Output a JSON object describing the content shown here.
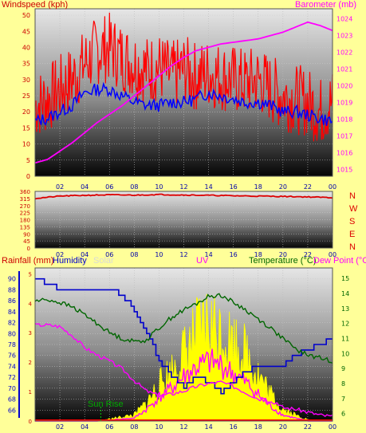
{
  "colors": {
    "background": "#ffff99",
    "wind_label": "#cc0000",
    "barometer": "#ff00ff",
    "wind_gust": "#ff0000",
    "wind_avg": "#0000ff",
    "direction": "#dd0000",
    "rain": "#ff0000",
    "humidity": "#0000cc",
    "solar": "#ffff00",
    "uv": "#ff00ff",
    "temperature": "#006600",
    "dewpoint": "#ff00ff"
  },
  "chart_data": [
    {
      "type": "line",
      "title": "",
      "ylabel": "Windspeed (kph)",
      "y2label": "Barometer (mb)",
      "x_ticks": [
        "02",
        "04",
        "06",
        "08",
        "10",
        "12",
        "14",
        "16",
        "18",
        "20",
        "22",
        "00"
      ],
      "ylim": [
        0,
        52
      ],
      "y_ticks": [
        0,
        5,
        10,
        15,
        20,
        25,
        30,
        35,
        40,
        45,
        50
      ],
      "y2lim": [
        1014.6,
        1024.6
      ],
      "y2_ticks": [
        1015,
        1016,
        1017,
        1018,
        1019,
        1020,
        1021,
        1022,
        1023,
        1024
      ],
      "series": [
        {
          "name": "Windspeed (kph)",
          "style": "gust",
          "x": [
            0,
            1,
            2,
            3,
            4,
            5,
            6,
            7,
            8,
            9,
            10,
            11,
            12,
            13,
            14,
            15,
            16,
            17,
            18,
            19,
            20,
            21,
            22,
            23,
            24
          ],
          "values": [
            22,
            24,
            27,
            30,
            35,
            39,
            40,
            37,
            35,
            33,
            34,
            31,
            33,
            31,
            32,
            31,
            30,
            29,
            30,
            27,
            25,
            24,
            23,
            20,
            23
          ]
        },
        {
          "name": "Windspeed (kph)",
          "style": "average",
          "x": [
            0,
            1,
            2,
            3,
            4,
            5,
            6,
            7,
            8,
            9,
            10,
            11,
            12,
            13,
            14,
            15,
            16,
            17,
            18,
            19,
            20,
            21,
            22,
            23,
            24
          ],
          "values": [
            17,
            18,
            20,
            22,
            26,
            27,
            27,
            25,
            23,
            22,
            22,
            23,
            23,
            24,
            26,
            25,
            24,
            23,
            23,
            22,
            20,
            20,
            19,
            18,
            17
          ]
        },
        {
          "name": "Barometer (mb)",
          "x": [
            0,
            1,
            2,
            3,
            4,
            5,
            6,
            7,
            8,
            9,
            10,
            11,
            12,
            13,
            14,
            15,
            16,
            17,
            18,
            19,
            20,
            21,
            22,
            23,
            24
          ],
          "values": [
            1015.4,
            1015.6,
            1016.1,
            1016.6,
            1017.2,
            1017.8,
            1018.3,
            1018.8,
            1019.4,
            1020.0,
            1020.6,
            1021.2,
            1021.7,
            1022.1,
            1022.3,
            1022.5,
            1022.6,
            1022.7,
            1022.8,
            1023.0,
            1023.2,
            1023.5,
            1023.8,
            1023.6,
            1023.3
          ]
        }
      ]
    },
    {
      "type": "line",
      "title": "",
      "x_ticks": [
        "02",
        "04",
        "06",
        "08",
        "10",
        "12",
        "14",
        "16",
        "18",
        "20",
        "22",
        "00"
      ],
      "ylim": [
        0,
        360
      ],
      "y_ticks": [
        0,
        45,
        90,
        135,
        180,
        225,
        270,
        315,
        360
      ],
      "direction_labels": [
        "N",
        "W",
        "S",
        "E",
        "N"
      ],
      "series": [
        {
          "name": "Wind direction",
          "x": [
            0,
            2,
            4,
            6,
            8,
            10,
            12,
            14,
            16,
            18,
            20,
            22,
            24
          ],
          "values": [
            315,
            330,
            335,
            338,
            336,
            340,
            337,
            335,
            332,
            330,
            328,
            325,
            320
          ]
        }
      ]
    },
    {
      "type": "line",
      "title": "",
      "labels": [
        "Rainfall (mm)",
        "Humidity",
        "Solar",
        "UV",
        "Temperature (°C)",
        "Dew Point (°C)"
      ],
      "x_ticks": [
        "02",
        "04",
        "06",
        "08",
        "10",
        "12",
        "14",
        "16",
        "18",
        "20",
        "22",
        "00"
      ],
      "rain_ticks": [
        0,
        1,
        2,
        3,
        4,
        5
      ],
      "humidity_lim": [
        64,
        92
      ],
      "humidity_ticks": [
        66,
        68,
        70,
        72,
        74,
        76,
        78,
        80,
        82,
        84,
        86,
        88,
        90
      ],
      "temp_lim": [
        5.5,
        15.7
      ],
      "temp_ticks": [
        6,
        7,
        8,
        9,
        10,
        11,
        12,
        13,
        14,
        15
      ],
      "annotations": [
        "Sun Rise"
      ],
      "series": [
        {
          "name": "Humidity",
          "x": [
            0,
            1,
            2,
            3,
            4,
            5,
            6,
            7,
            8,
            9,
            10,
            11,
            12,
            13,
            14,
            15,
            16,
            17,
            18,
            19,
            20,
            21,
            22,
            23,
            24
          ],
          "values": [
            90,
            89,
            88,
            88,
            88,
            88,
            88,
            87,
            84,
            80,
            75,
            72,
            70,
            72,
            71,
            69,
            71,
            73,
            74,
            74,
            74,
            76,
            77,
            78,
            79
          ]
        },
        {
          "name": "Temperature (°C)",
          "x": [
            0,
            1,
            2,
            3,
            4,
            5,
            6,
            7,
            8,
            9,
            10,
            11,
            12,
            13,
            14,
            15,
            16,
            17,
            18,
            19,
            20,
            21,
            22,
            23,
            24
          ],
          "values": [
            13.5,
            13.6,
            13.4,
            13.1,
            12.6,
            12.0,
            11.4,
            11.0,
            10.8,
            10.9,
            11.7,
            12.4,
            12.9,
            13.3,
            13.8,
            13.9,
            13.4,
            12.9,
            12.3,
            11.7,
            11.0,
            10.3,
            9.9,
            9.7,
            9.5
          ]
        },
        {
          "name": "Dew Point (°C)",
          "x": [
            0,
            1,
            2,
            3,
            4,
            5,
            6,
            7,
            8,
            9,
            10,
            11,
            12,
            13,
            14,
            15,
            16,
            17,
            18,
            19,
            20,
            21,
            22,
            23,
            24
          ],
          "values": [
            11.9,
            11.9,
            11.8,
            11.2,
            10.4,
            9.9,
            9.5,
            9.0,
            8.2,
            7.5,
            7.2,
            7.3,
            7.5,
            7.8,
            8.0,
            8.1,
            7.8,
            7.4,
            7.0,
            6.8,
            6.4,
            6.3,
            6.1,
            5.9,
            5.8
          ]
        },
        {
          "name": "Solar",
          "x": [
            0,
            5,
            8,
            9,
            10,
            11,
            12,
            13,
            14,
            15,
            16,
            17,
            18,
            19,
            20,
            21,
            22,
            23,
            24
          ],
          "values": [
            0,
            0,
            0.2,
            0.6,
            1.2,
            1.7,
            2.3,
            2.9,
            3.3,
            3.0,
            2.7,
            2.3,
            1.6,
            0.9,
            0.4,
            0.2,
            0.05,
            0,
            0
          ]
        },
        {
          "name": "UV",
          "x": [
            0,
            5,
            8,
            9,
            10,
            11,
            12,
            13,
            14,
            15,
            16,
            17,
            18,
            19,
            20,
            21,
            22,
            23,
            24
          ],
          "values": [
            0,
            0,
            0.1,
            0.4,
            0.8,
            1.1,
            1.5,
            1.8,
            2.0,
            1.9,
            1.6,
            1.3,
            0.9,
            0.5,
            0.2,
            0.1,
            0,
            0,
            0
          ]
        }
      ]
    }
  ],
  "sunrise_hour": 5.3
}
